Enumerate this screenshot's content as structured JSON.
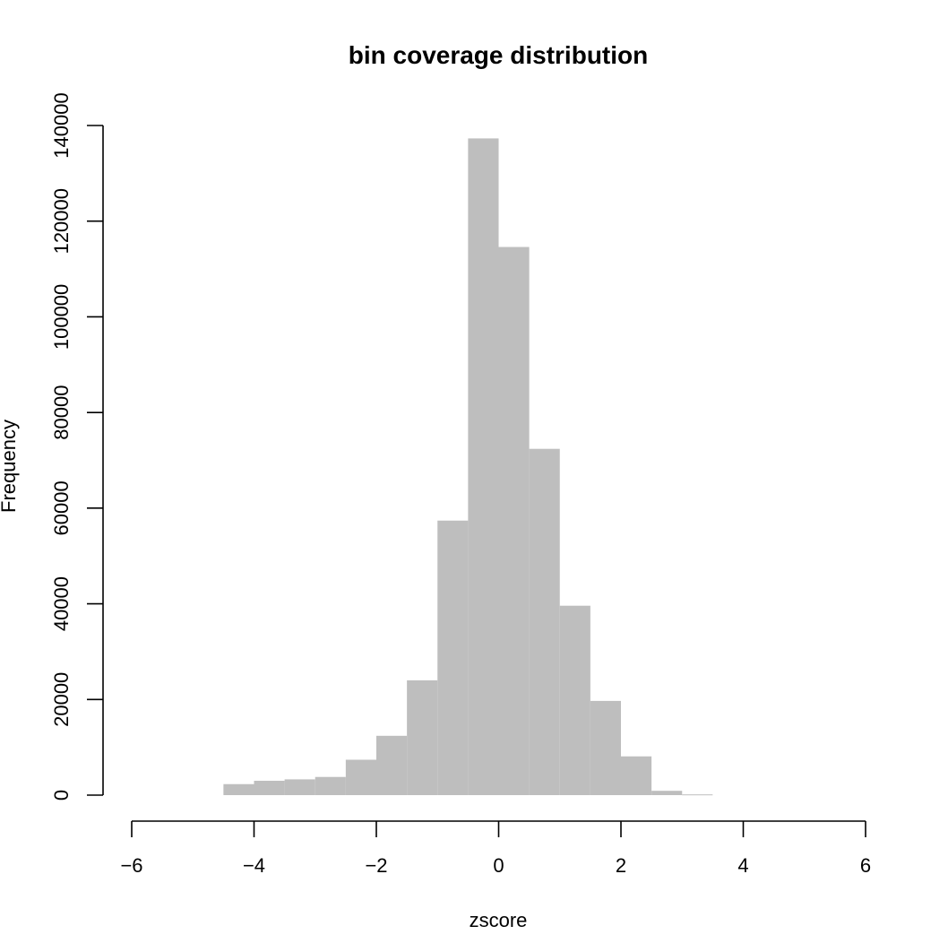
{
  "chart_data": {
    "type": "bar",
    "title": "bin coverage distribution",
    "xlabel": "zscore",
    "ylabel": "Frequency",
    "xlim": [
      -6,
      6
    ],
    "ylim": [
      0,
      140000
    ],
    "x_ticks": [
      -6,
      -4,
      -2,
      0,
      2,
      4,
      6
    ],
    "x_tick_labels": [
      "−6",
      "−4",
      "−2",
      "0",
      "2",
      "4",
      "6"
    ],
    "y_ticks": [
      0,
      20000,
      40000,
      60000,
      80000,
      100000,
      120000,
      140000
    ],
    "y_tick_labels": [
      "0",
      "20000",
      "40000",
      "60000",
      "80000",
      "100000",
      "120000",
      "140000"
    ],
    "bar_color": "#bebebe",
    "grid": false,
    "bin_width": 0.5,
    "bins": [
      {
        "start": -4.5,
        "end": -4.0,
        "count": 2300
      },
      {
        "start": -4.0,
        "end": -3.5,
        "count": 3000
      },
      {
        "start": -3.5,
        "end": -3.0,
        "count": 3300
      },
      {
        "start": -3.0,
        "end": -2.5,
        "count": 3800
      },
      {
        "start": -2.5,
        "end": -2.0,
        "count": 7400
      },
      {
        "start": -2.0,
        "end": -1.5,
        "count": 12400
      },
      {
        "start": -1.5,
        "end": -1.0,
        "count": 24000
      },
      {
        "start": -1.0,
        "end": -0.5,
        "count": 57400
      },
      {
        "start": -0.5,
        "end": 0.0,
        "count": 137300
      },
      {
        "start": 0.0,
        "end": 0.5,
        "count": 114600
      },
      {
        "start": 0.5,
        "end": 1.0,
        "count": 72400
      },
      {
        "start": 1.0,
        "end": 1.5,
        "count": 39600
      },
      {
        "start": 1.5,
        "end": 2.0,
        "count": 19700
      },
      {
        "start": 2.0,
        "end": 2.5,
        "count": 8100
      },
      {
        "start": 2.5,
        "end": 3.0,
        "count": 900
      },
      {
        "start": 3.0,
        "end": 3.5,
        "count": 150
      }
    ]
  }
}
